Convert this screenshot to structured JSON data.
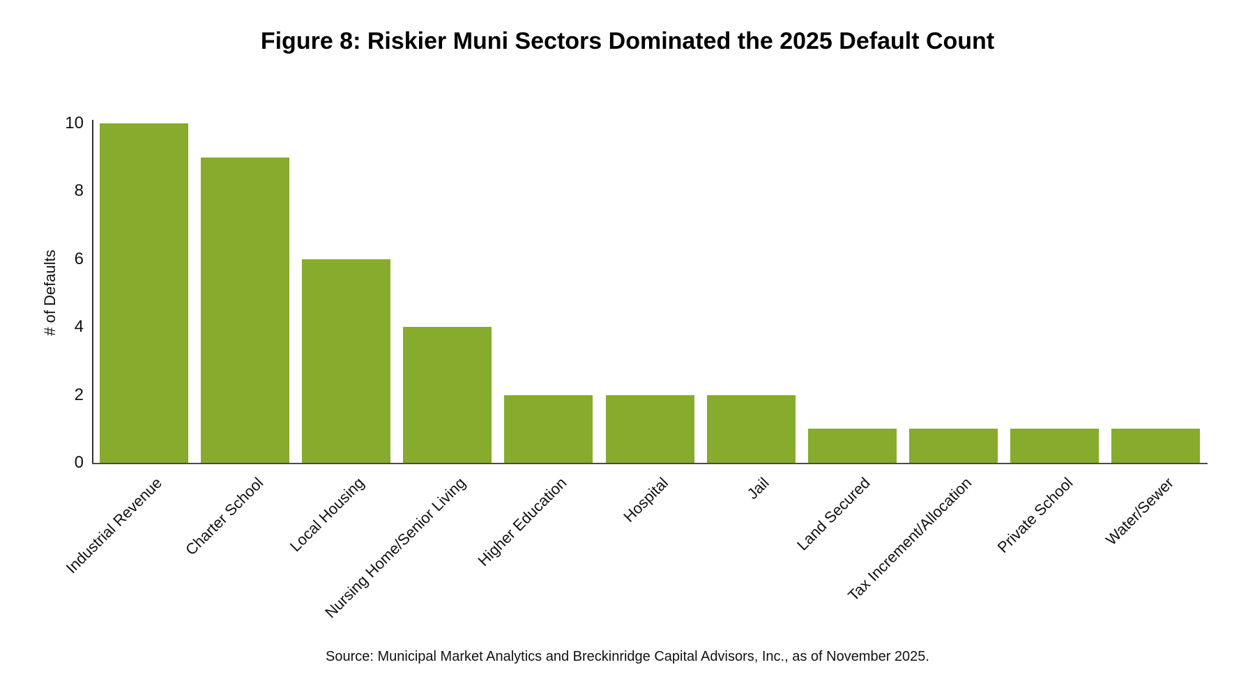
{
  "chart_data": {
    "type": "bar",
    "title": "Figure 8: Riskier Muni Sectors Dominated the 2025 Default Count",
    "categories": [
      "Industrial Revenue",
      "Charter School",
      "Local Housing",
      "Nursing Home/Senior Living",
      "Higher Education",
      "Hospital",
      "Jail",
      "Land Secured",
      "Tax Increment/Allocation",
      "Private School",
      "Water/Sewer"
    ],
    "values": [
      10,
      9,
      6,
      4,
      2,
      2,
      2,
      1,
      1,
      1,
      1
    ],
    "xlabel": "",
    "ylabel": "# of Defaults",
    "ylim": [
      0,
      10
    ],
    "yticks": [
      0,
      2,
      4,
      6,
      8,
      10
    ],
    "x_tick_rotation_deg": 45,
    "grid": false,
    "legend_position": "none",
    "bar_color": "#86AB2D",
    "source_note": "Source: Municipal Market Analytics and Breckinridge Capital Advisors, Inc., as of November 2025."
  },
  "colors": {
    "background": "#ffffff",
    "bar": "#86AB2D",
    "y_axis_line": "#303030",
    "x_axis_line": "#4a4a4a",
    "text": "#111111"
  }
}
